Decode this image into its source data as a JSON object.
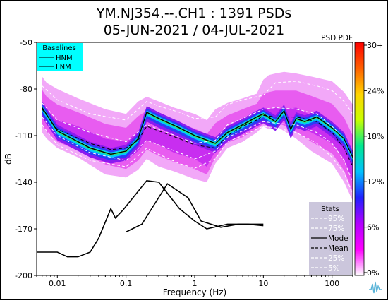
{
  "chart_data": {
    "type": "heatmap",
    "title_line1": "YM.NJ354.--.CH1 : 1391 PSDs",
    "title_line2": "05-JUN-2021 / 04-JUL-2021",
    "corner_label": "PSD PDF",
    "xlabel": "Frequency (Hz)",
    "ylabel": "dB",
    "xscale": "log",
    "xlim": [
      0.005,
      200
    ],
    "ylim": [
      -200,
      -50
    ],
    "xticks": [
      {
        "value": 0.01,
        "label": "0.01"
      },
      {
        "value": 0.1,
        "label": "0.1"
      },
      {
        "value": 1,
        "label": "1"
      },
      {
        "value": 10,
        "label": "10"
      },
      {
        "value": 100,
        "label": "100"
      }
    ],
    "yticks": [
      {
        "value": -50,
        "label": "-50"
      },
      {
        "value": -80,
        "label": "-80"
      },
      {
        "value": -110,
        "label": "-110"
      },
      {
        "value": -140,
        "label": "-140"
      },
      {
        "value": -170,
        "label": "-170"
      },
      {
        "value": -200,
        "label": "-200"
      }
    ],
    "colorbar": {
      "colors": [
        "#ffffff",
        "#ff00ff",
        "#b200ff",
        "#2020ff",
        "#00c0ff",
        "#00e890",
        "#c8ff00",
        "#ffd400",
        "#ff6000",
        "#ff0000"
      ],
      "ticks": [
        "30+",
        "24%",
        "18%",
        "12%",
        "6%",
        "0%"
      ]
    },
    "baselines_legend": {
      "title": "Baselines",
      "items": [
        "HNM",
        "LNM"
      ],
      "background": "#00ffff"
    },
    "stats_legend": {
      "title": "Stats",
      "background": "#cbc6dc",
      "items": [
        {
          "label": "95%",
          "style": "dash",
          "color": "#ffffff"
        },
        {
          "label": "75%",
          "style": "dash",
          "color": "#ffffff"
        },
        {
          "label": "Mode",
          "style": "solid",
          "color": "#000000"
        },
        {
          "label": "Mean",
          "style": "dash",
          "color": "#000000"
        },
        {
          "label": "25%",
          "style": "dash",
          "color": "#ffffff"
        },
        {
          "label": "5%",
          "style": "dash",
          "color": "#ffffff"
        }
      ]
    },
    "hnm": {
      "x": [
        0.1,
        0.17,
        0.4,
        0.8,
        1.24,
        2.4,
        4.3,
        5.0,
        6.0,
        10.0
      ],
      "y": [
        -172,
        -167,
        -141,
        -150,
        -165,
        -169,
        -167,
        -167,
        -167,
        -168
      ]
    },
    "lnm": {
      "x": [
        0.005,
        0.01,
        0.014,
        0.02,
        0.03,
        0.04,
        0.06,
        0.07,
        0.09,
        0.2,
        0.3,
        0.6,
        1.0,
        1.5,
        3.0,
        10.0
      ],
      "y": [
        -185,
        -185,
        -188,
        -188,
        -185,
        -176,
        -157,
        -163,
        -158,
        -139,
        -140,
        -157,
        -165,
        -170,
        -167,
        -167
      ]
    },
    "pdf_band": {
      "x": [
        0.006,
        0.007,
        0.01,
        0.02,
        0.05,
        0.1,
        0.15,
        0.2,
        0.3,
        0.5,
        1,
        1.5,
        2,
        3,
        5,
        8,
        10,
        12,
        15,
        20,
        30,
        50,
        100,
        150,
        200
      ],
      "max": [
        -72,
        -76,
        -80,
        -86,
        -93,
        -96,
        -88,
        -85,
        -88,
        -92,
        -96,
        -100,
        -93,
        -89,
        -86,
        -83,
        -74,
        -71,
        -70,
        -69,
        -70,
        -72,
        -75,
        -82,
        -90
      ],
      "p75": [
        -89,
        -94,
        -100,
        -104,
        -112,
        -114,
        -107,
        -103,
        -106,
        -110,
        -115,
        -118,
        -111,
        -105,
        -100,
        -96,
        -92,
        -93,
        -92,
        -93,
        -92,
        -97,
        -104,
        -115,
        -130
      ],
      "p25": [
        -98,
        -103,
        -110,
        -115,
        -122,
        -126,
        -120,
        -113,
        -116,
        -121,
        -125,
        -130,
        -120,
        -111,
        -108,
        -103,
        -101,
        -102,
        -99,
        -100,
        -103,
        -108,
        -115,
        -125,
        -140
      ],
      "min": [
        -108,
        -112,
        -118,
        -124,
        -135,
        -137,
        -132,
        -125,
        -130,
        -133,
        -138,
        -140,
        -128,
        -118,
        -114,
        -108,
        -104,
        -106,
        -104,
        -107,
        -112,
        -120,
        -128,
        -140,
        -152
      ]
    },
    "p95": {
      "x": [
        0.006,
        0.01,
        0.03,
        0.1,
        0.2,
        0.3,
        0.6,
        1,
        2,
        3,
        5,
        10,
        15,
        30,
        60,
        100,
        150,
        200
      ],
      "y": [
        -78,
        -87,
        -96,
        -100,
        -88,
        -91,
        -95,
        -99,
        -98,
        -90,
        -87,
        -84,
        -76,
        -75,
        -78,
        -81,
        -88,
        -96
      ]
    },
    "p75": {
      "x": [
        0.006,
        0.01,
        0.03,
        0.1,
        0.2,
        0.3,
        0.6,
        1,
        2,
        3,
        5,
        10,
        15,
        30,
        60,
        100,
        150,
        200
      ],
      "y": [
        -89,
        -100,
        -108,
        -114,
        -103,
        -106,
        -111,
        -115,
        -113,
        -103,
        -99,
        -93,
        -92,
        -93,
        -96,
        -104,
        -112,
        -125
      ]
    },
    "mode": {
      "x": [
        0.006,
        0.01,
        0.03,
        0.06,
        0.1,
        0.15,
        0.2,
        0.3,
        0.6,
        1,
        2,
        3,
        5,
        8,
        10,
        15,
        20,
        25,
        30,
        40,
        60,
        100,
        150,
        200
      ],
      "y": [
        -92,
        -107,
        -118,
        -122,
        -120,
        -112,
        -95,
        -99,
        -105,
        -110,
        -115,
        -108,
        -103,
        -98,
        -96,
        -101,
        -94,
        -106,
        -99,
        -101,
        -98,
        -105,
        -112,
        -124
      ]
    },
    "mean": {
      "x": [
        0.006,
        0.01,
        0.03,
        0.06,
        0.1,
        0.15,
        0.2,
        0.3,
        0.6,
        1,
        2,
        3,
        5,
        8,
        10,
        15,
        20,
        30,
        60,
        100,
        150,
        200
      ],
      "y": [
        -93,
        -106,
        -115,
        -119,
        -118,
        -113,
        -104,
        -107,
        -112,
        -116,
        -118,
        -110,
        -104,
        -100,
        -97,
        -98,
        -98,
        -98,
        -101,
        -108,
        -118,
        -130
      ]
    },
    "p25": {
      "x": [
        0.006,
        0.01,
        0.03,
        0.1,
        0.2,
        0.3,
        0.6,
        1,
        2,
        3,
        5,
        10,
        15,
        30,
        60,
        100,
        150,
        200
      ],
      "y": [
        -98,
        -110,
        -121,
        -126,
        -113,
        -116,
        -121,
        -125,
        -120,
        -111,
        -107,
        -101,
        -102,
        -103,
        -108,
        -115,
        -126,
        -140
      ]
    },
    "p5": {
      "x": [
        0.006,
        0.01,
        0.03,
        0.1,
        0.2,
        0.3,
        0.6,
        1,
        2,
        3,
        5,
        10,
        15,
        30,
        60,
        100,
        150,
        200
      ],
      "y": [
        -103,
        -116,
        -126,
        -130,
        -118,
        -122,
        -128,
        -131,
        -125,
        -114,
        -110,
        -104,
        -105,
        -108,
        -115,
        -124,
        -134,
        -148
      ]
    }
  }
}
